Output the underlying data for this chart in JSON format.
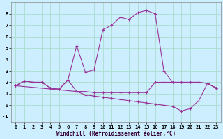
{
  "xlabel": "Windchill (Refroidissement éolien,°C)",
  "background_color": "#cceeff",
  "grid_color": "#aaddcc",
  "line_color": "#993399",
  "xlim": [
    -0.5,
    23.5
  ],
  "ylim": [
    -1.5,
    9.0
  ],
  "yticks": [
    -1,
    0,
    1,
    2,
    3,
    4,
    5,
    6,
    7,
    8
  ],
  "xticks": [
    0,
    1,
    2,
    3,
    4,
    5,
    6,
    7,
    8,
    9,
    10,
    11,
    12,
    13,
    14,
    15,
    16,
    17,
    18,
    19,
    20,
    21,
    22,
    23
  ],
  "series1_x": [
    0,
    1,
    2,
    3,
    4,
    5,
    6,
    7,
    8,
    9,
    10,
    11,
    12,
    13,
    14,
    15,
    16,
    17,
    18,
    19,
    20,
    21,
    22,
    23
  ],
  "series1_y": [
    1.7,
    2.1,
    2.0,
    2.0,
    1.5,
    1.4,
    2.2,
    5.2,
    2.9,
    3.1,
    6.6,
    7.0,
    7.7,
    7.5,
    8.1,
    8.3,
    8.0,
    3.0,
    2.0,
    2.0,
    2.0,
    2.0,
    1.9,
    1.5
  ],
  "series2_x": [
    0,
    1,
    2,
    3,
    4,
    5,
    6,
    7,
    8,
    9,
    10,
    11,
    12,
    13,
    14,
    15,
    16,
    17,
    18,
    19,
    20,
    21,
    22,
    23
  ],
  "series2_y": [
    1.7,
    2.1,
    2.0,
    2.0,
    1.5,
    1.4,
    2.2,
    1.2,
    1.2,
    1.1,
    1.1,
    1.1,
    1.1,
    1.1,
    1.1,
    1.1,
    2.0,
    2.0,
    2.0,
    2.0,
    2.0,
    2.0,
    1.9,
    1.5
  ],
  "series3_x": [
    0,
    7,
    8,
    9,
    10,
    11,
    12,
    13,
    14,
    15,
    16,
    17,
    18,
    19,
    20,
    21,
    22,
    23
  ],
  "series3_y": [
    1.7,
    1.2,
    0.9,
    0.8,
    0.7,
    0.6,
    0.5,
    0.4,
    0.3,
    0.2,
    0.1,
    0.0,
    -0.1,
    -0.5,
    -0.3,
    0.4,
    1.9,
    1.5
  ],
  "label_fontsize": 5.5,
  "tick_fontsize": 5.0,
  "marker_size": 3,
  "linewidth": 0.8
}
